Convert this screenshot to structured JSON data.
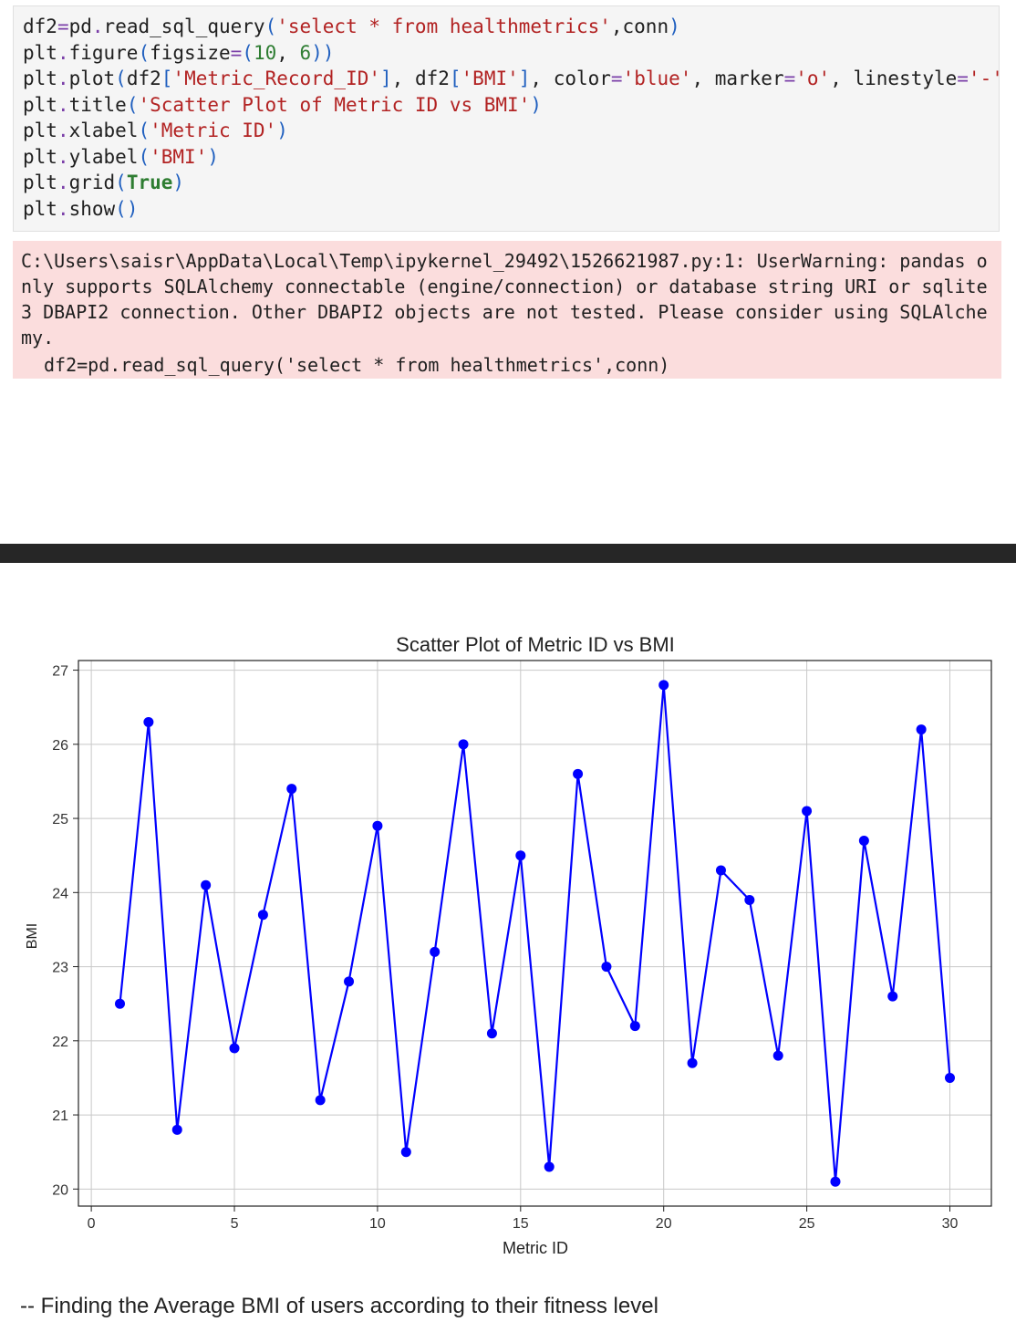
{
  "code_cell": {
    "lines": [
      [
        {
          "t": "plain",
          "s": "df2"
        },
        {
          "t": "op",
          "s": "="
        },
        {
          "t": "plain",
          "s": "pd"
        },
        {
          "t": "op",
          "s": "."
        },
        {
          "t": "plain",
          "s": "read_sql_query"
        },
        {
          "t": "br",
          "s": "("
        },
        {
          "t": "str",
          "s": "'select * from healthmetrics'"
        },
        {
          "t": "plain",
          "s": ",conn"
        },
        {
          "t": "br",
          "s": ")"
        }
      ],
      [
        {
          "t": "plain",
          "s": "plt"
        },
        {
          "t": "op",
          "s": "."
        },
        {
          "t": "plain",
          "s": "figure"
        },
        {
          "t": "br",
          "s": "("
        },
        {
          "t": "plain",
          "s": "figsize"
        },
        {
          "t": "op",
          "s": "="
        },
        {
          "t": "br",
          "s": "("
        },
        {
          "t": "num",
          "s": "10"
        },
        {
          "t": "plain",
          "s": ", "
        },
        {
          "t": "num",
          "s": "6"
        },
        {
          "t": "br",
          "s": "))"
        }
      ],
      [
        {
          "t": "plain",
          "s": "plt"
        },
        {
          "t": "op",
          "s": "."
        },
        {
          "t": "plain",
          "s": "plot"
        },
        {
          "t": "br",
          "s": "("
        },
        {
          "t": "plain",
          "s": "df2"
        },
        {
          "t": "br",
          "s": "["
        },
        {
          "t": "str",
          "s": "'Metric_Record_ID'"
        },
        {
          "t": "br",
          "s": "]"
        },
        {
          "t": "plain",
          "s": ", df2"
        },
        {
          "t": "br",
          "s": "["
        },
        {
          "t": "str",
          "s": "'BMI'"
        },
        {
          "t": "br",
          "s": "]"
        },
        {
          "t": "plain",
          "s": ", color"
        },
        {
          "t": "op",
          "s": "="
        },
        {
          "t": "str",
          "s": "'blue'"
        },
        {
          "t": "plain",
          "s": ", marker"
        },
        {
          "t": "op",
          "s": "="
        },
        {
          "t": "str",
          "s": "'o'"
        },
        {
          "t": "plain",
          "s": ", linestyle"
        },
        {
          "t": "op",
          "s": "="
        },
        {
          "t": "str",
          "s": "'-'"
        },
        {
          "t": "br",
          "s": ")"
        }
      ],
      [
        {
          "t": "plain",
          "s": "plt"
        },
        {
          "t": "op",
          "s": "."
        },
        {
          "t": "plain",
          "s": "title"
        },
        {
          "t": "br",
          "s": "("
        },
        {
          "t": "str",
          "s": "'Scatter Plot of Metric ID vs BMI'"
        },
        {
          "t": "br",
          "s": ")"
        }
      ],
      [
        {
          "t": "plain",
          "s": "plt"
        },
        {
          "t": "op",
          "s": "."
        },
        {
          "t": "plain",
          "s": "xlabel"
        },
        {
          "t": "br",
          "s": "("
        },
        {
          "t": "str",
          "s": "'Metric ID'"
        },
        {
          "t": "br",
          "s": ")"
        }
      ],
      [
        {
          "t": "plain",
          "s": "plt"
        },
        {
          "t": "op",
          "s": "."
        },
        {
          "t": "plain",
          "s": "ylabel"
        },
        {
          "t": "br",
          "s": "("
        },
        {
          "t": "str",
          "s": "'BMI'"
        },
        {
          "t": "br",
          "s": ")"
        }
      ],
      [
        {
          "t": "plain",
          "s": "plt"
        },
        {
          "t": "op",
          "s": "."
        },
        {
          "t": "plain",
          "s": "grid"
        },
        {
          "t": "br",
          "s": "("
        },
        {
          "t": "kw",
          "s": "True"
        },
        {
          "t": "br",
          "s": ")"
        }
      ],
      [
        {
          "t": "plain",
          "s": "plt"
        },
        {
          "t": "op",
          "s": "."
        },
        {
          "t": "plain",
          "s": "show"
        },
        {
          "t": "br",
          "s": "()"
        }
      ]
    ]
  },
  "warning": {
    "message": "C:\\Users\\saisr\\AppData\\Local\\Temp\\ipykernel_29492\\1526621987.py:1: UserWarning: pandas only supports SQLAlchemy connectable (engine/connection) or database string URI or sqlite3 DBAPI2 connection. Other DBAPI2 objects are not tested. Please consider using SQLAlchemy.",
    "code_line": "df2=pd.read_sql_query('select * from healthmetrics',conn)"
  },
  "chart_data": {
    "type": "line",
    "title": "Scatter Plot of Metric ID vs BMI",
    "xlabel": "Metric ID",
    "ylabel": "BMI",
    "xlim": [
      -0.45,
      31.45
    ],
    "ylim": [
      19.77,
      27.13
    ],
    "xticks": [
      0,
      5,
      10,
      15,
      20,
      25,
      30
    ],
    "yticks": [
      20,
      21,
      22,
      23,
      24,
      25,
      26,
      27
    ],
    "grid": true,
    "line_color": "#0000ff",
    "marker": "o",
    "x": [
      1,
      2,
      3,
      4,
      5,
      6,
      7,
      8,
      9,
      10,
      11,
      12,
      13,
      14,
      15,
      16,
      17,
      18,
      19,
      20,
      21,
      22,
      23,
      24,
      25,
      26,
      27,
      28,
      29,
      30
    ],
    "y": [
      22.5,
      26.3,
      20.8,
      24.1,
      21.9,
      23.7,
      25.4,
      21.2,
      22.8,
      24.9,
      20.5,
      23.2,
      26.0,
      22.1,
      24.5,
      20.3,
      25.6,
      23.0,
      22.2,
      26.8,
      21.7,
      24.3,
      23.9,
      21.8,
      25.1,
      20.1,
      24.7,
      22.6,
      26.2,
      21.5
    ]
  },
  "footer": {
    "text": "-- Finding the Average BMI of users according to their fitness level"
  }
}
